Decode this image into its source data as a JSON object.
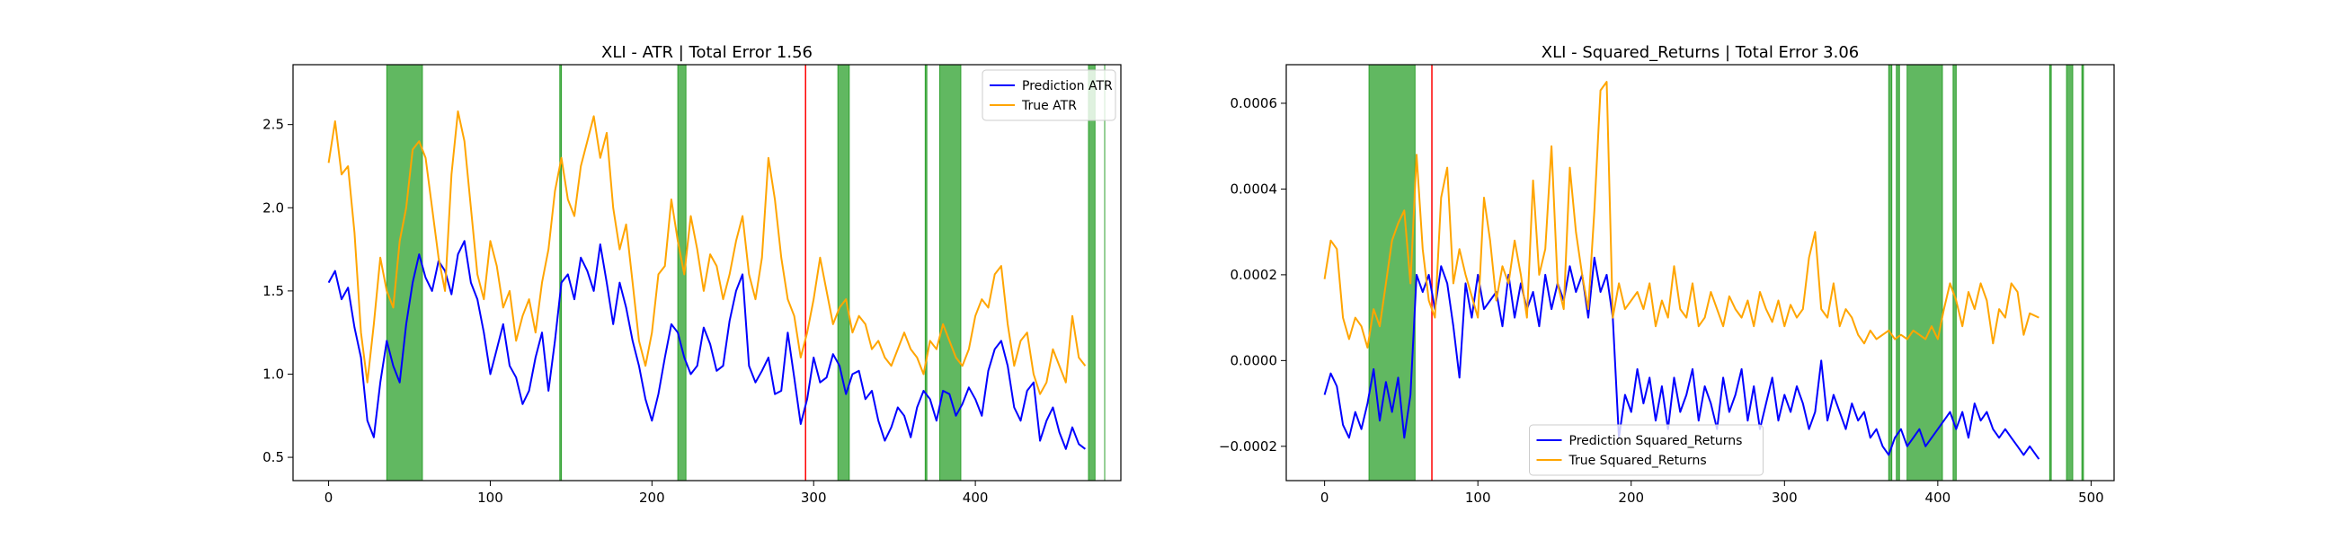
{
  "chart_data": [
    {
      "type": "line",
      "title": "XLI - ATR | Total Error 1.56",
      "xlabel": "",
      "ylabel": "",
      "xlim": [
        -22,
        490
      ],
      "ylim": [
        0.36,
        2.86
      ],
      "xticks": [
        0,
        100,
        200,
        300,
        400
      ],
      "yticks": [
        0.5,
        1.0,
        1.5,
        2.0,
        2.5
      ],
      "ytick_labels": [
        "0.5",
        "1.0",
        "1.5",
        "2.0",
        "2.5"
      ],
      "legend": "top-right",
      "colors": {
        "prediction": "#0000ff",
        "truth": "#ffa500",
        "green_band": "#2ca02c",
        "red_line": "#ff0000"
      },
      "series": [
        {
          "name": "Prediction ATR",
          "color": "#0000ff",
          "x": [
            0,
            4,
            8,
            12,
            16,
            20,
            24,
            28,
            32,
            36,
            40,
            44,
            48,
            52,
            56,
            60,
            64,
            68,
            72,
            76,
            80,
            84,
            88,
            92,
            96,
            100,
            104,
            108,
            112,
            116,
            120,
            124,
            128,
            132,
            136,
            140,
            144,
            148,
            152,
            156,
            160,
            164,
            168,
            172,
            176,
            180,
            184,
            188,
            192,
            196,
            200,
            204,
            208,
            212,
            216,
            220,
            224,
            228,
            232,
            236,
            240,
            244,
            248,
            252,
            256,
            260,
            264,
            268,
            272,
            276,
            280,
            284,
            288,
            292,
            296,
            300,
            304,
            308,
            312,
            316,
            320,
            324,
            328,
            332,
            336,
            340,
            344,
            348,
            352,
            356,
            360,
            364,
            368,
            372,
            376,
            380,
            384,
            388,
            392,
            396,
            400,
            404,
            408,
            412,
            416,
            420,
            424,
            428,
            432,
            436,
            440,
            444,
            448,
            452,
            456,
            460,
            464,
            468
          ],
          "y": [
            1.55,
            1.62,
            1.45,
            1.52,
            1.28,
            1.1,
            0.72,
            0.62,
            0.95,
            1.2,
            1.05,
            0.95,
            1.3,
            1.55,
            1.72,
            1.58,
            1.5,
            1.68,
            1.62,
            1.48,
            1.72,
            1.8,
            1.55,
            1.45,
            1.25,
            1.0,
            1.15,
            1.3,
            1.05,
            0.98,
            0.82,
            0.9,
            1.1,
            1.25,
            0.9,
            1.2,
            1.55,
            1.6,
            1.45,
            1.7,
            1.62,
            1.5,
            1.78,
            1.55,
            1.3,
            1.55,
            1.4,
            1.2,
            1.05,
            0.85,
            0.72,
            0.88,
            1.1,
            1.3,
            1.25,
            1.1,
            1.0,
            1.05,
            1.28,
            1.18,
            1.02,
            1.05,
            1.32,
            1.5,
            1.6,
            1.05,
            0.95,
            1.02,
            1.1,
            0.88,
            0.9,
            1.25,
            0.98,
            0.7,
            0.85,
            1.1,
            0.95,
            0.98,
            1.12,
            1.05,
            0.88,
            1.0,
            1.02,
            0.85,
            0.9,
            0.72,
            0.6,
            0.68,
            0.8,
            0.75,
            0.62,
            0.8,
            0.9,
            0.85,
            0.72,
            0.9,
            0.88,
            0.75,
            0.82,
            0.92,
            0.85,
            0.75,
            1.02,
            1.15,
            1.2,
            1.05,
            0.8,
            0.72,
            0.9,
            0.95,
            0.6,
            0.72,
            0.8,
            0.65,
            0.55,
            0.68,
            0.58,
            0.55
          ]
        },
        {
          "name": "True ATR",
          "color": "#ffa500",
          "x": [
            0,
            4,
            8,
            12,
            16,
            20,
            24,
            28,
            32,
            36,
            40,
            44,
            48,
            52,
            56,
            60,
            64,
            68,
            72,
            76,
            80,
            84,
            88,
            92,
            96,
            100,
            104,
            108,
            112,
            116,
            120,
            124,
            128,
            132,
            136,
            140,
            144,
            148,
            152,
            156,
            160,
            164,
            168,
            172,
            176,
            180,
            184,
            188,
            192,
            196,
            200,
            204,
            208,
            212,
            216,
            220,
            224,
            228,
            232,
            236,
            240,
            244,
            248,
            252,
            256,
            260,
            264,
            268,
            272,
            276,
            280,
            284,
            288,
            292,
            296,
            300,
            304,
            308,
            312,
            316,
            320,
            324,
            328,
            332,
            336,
            340,
            344,
            348,
            352,
            356,
            360,
            364,
            368,
            372,
            376,
            380,
            384,
            388,
            392,
            396,
            400,
            404,
            408,
            412,
            416,
            420,
            424,
            428,
            432,
            436,
            440,
            444,
            448,
            452,
            456,
            460,
            464,
            468
          ],
          "y": [
            2.27,
            2.52,
            2.2,
            2.25,
            1.85,
            1.25,
            0.95,
            1.3,
            1.7,
            1.5,
            1.4,
            1.8,
            2.0,
            2.35,
            2.4,
            2.3,
            2.0,
            1.7,
            1.5,
            2.2,
            2.58,
            2.4,
            2.0,
            1.6,
            1.45,
            1.8,
            1.65,
            1.4,
            1.5,
            1.2,
            1.35,
            1.45,
            1.25,
            1.55,
            1.75,
            2.1,
            2.3,
            2.05,
            1.95,
            2.25,
            2.4,
            2.55,
            2.3,
            2.45,
            2.0,
            1.75,
            1.9,
            1.55,
            1.2,
            1.05,
            1.25,
            1.6,
            1.65,
            2.05,
            1.8,
            1.6,
            1.95,
            1.75,
            1.5,
            1.72,
            1.65,
            1.45,
            1.6,
            1.8,
            1.95,
            1.6,
            1.45,
            1.7,
            2.3,
            2.05,
            1.7,
            1.45,
            1.35,
            1.1,
            1.25,
            1.45,
            1.7,
            1.5,
            1.3,
            1.4,
            1.45,
            1.25,
            1.35,
            1.3,
            1.15,
            1.2,
            1.1,
            1.05,
            1.15,
            1.25,
            1.15,
            1.1,
            1.0,
            1.2,
            1.15,
            1.3,
            1.2,
            1.1,
            1.05,
            1.15,
            1.35,
            1.45,
            1.4,
            1.6,
            1.65,
            1.3,
            1.05,
            1.2,
            1.25,
            1.0,
            0.88,
            0.95,
            1.15,
            1.05,
            0.95,
            1.35,
            1.1,
            1.05
          ]
        }
      ],
      "green_bands": [
        [
          36,
          58
        ],
        [
          143,
          144
        ],
        [
          216,
          221
        ],
        [
          315,
          322
        ],
        [
          369,
          370
        ],
        [
          378,
          391
        ],
        [
          470,
          474
        ]
      ],
      "red_lines": [
        295
      ],
      "extra_lines": [
        480
      ]
    },
    {
      "type": "line",
      "title": "XLI - Squared_Returns | Total Error 3.06",
      "xlabel": "",
      "ylabel": "",
      "xlim": [
        -25,
        515
      ],
      "ylim": [
        -0.00028,
        0.00069
      ],
      "xticks": [
        0,
        100,
        200,
        300,
        400,
        500
      ],
      "yticks": [
        -0.0002,
        0.0,
        0.0002,
        0.0004,
        0.0006
      ],
      "ytick_labels": [
        "−0.0002",
        "0.0000",
        "0.0002",
        "0.0004",
        "0.0006"
      ],
      "legend": "bottom-center",
      "colors": {
        "prediction": "#0000ff",
        "truth": "#ffa500",
        "green_band": "#2ca02c",
        "red_line": "#ff0000"
      },
      "series": [
        {
          "name": "Prediction Squared_Returns",
          "color": "#0000ff",
          "x": [
            0,
            4,
            8,
            12,
            16,
            20,
            24,
            28,
            32,
            36,
            40,
            44,
            48,
            52,
            56,
            60,
            64,
            68,
            72,
            76,
            80,
            84,
            88,
            92,
            96,
            100,
            104,
            108,
            112,
            116,
            120,
            124,
            128,
            132,
            136,
            140,
            144,
            148,
            152,
            156,
            160,
            164,
            168,
            172,
            176,
            180,
            184,
            188,
            192,
            196,
            200,
            204,
            208,
            212,
            216,
            220,
            224,
            228,
            232,
            236,
            240,
            244,
            248,
            252,
            256,
            260,
            264,
            268,
            272,
            276,
            280,
            284,
            288,
            292,
            296,
            300,
            304,
            308,
            312,
            316,
            320,
            324,
            328,
            332,
            336,
            340,
            344,
            348,
            352,
            356,
            360,
            364,
            368,
            372,
            376,
            380,
            384,
            388,
            392,
            396,
            400,
            404,
            408,
            412,
            416,
            420,
            424,
            428,
            432,
            436,
            440,
            444,
            448,
            452,
            456,
            460,
            466
          ],
          "y": [
            -8e-05,
            -3e-05,
            -6e-05,
            -0.00015,
            -0.00018,
            -0.00012,
            -0.00016,
            -0.0001,
            -2e-05,
            -0.00014,
            -5e-05,
            -0.00012,
            -4e-05,
            -0.00018,
            -8e-05,
            0.0002,
            0.00016,
            0.0002,
            0.00012,
            0.00022,
            0.00018,
            8e-05,
            -4e-05,
            0.00018,
            0.0001,
            0.0002,
            0.00012,
            0.00014,
            0.00016,
            8e-05,
            0.0002,
            0.0001,
            0.00018,
            0.00012,
            0.00016,
            8e-05,
            0.0002,
            0.00012,
            0.00018,
            0.00014,
            0.00022,
            0.00016,
            0.0002,
            0.0001,
            0.00024,
            0.00016,
            0.0002,
            0.0001,
            -0.00018,
            -8e-05,
            -0.00012,
            -2e-05,
            -0.0001,
            -4e-05,
            -0.00014,
            -6e-05,
            -0.00016,
            -4e-05,
            -0.00012,
            -8e-05,
            -2e-05,
            -0.00014,
            -6e-05,
            -0.0001,
            -0.00016,
            -4e-05,
            -0.00012,
            -8e-05,
            -2e-05,
            -0.00014,
            -6e-05,
            -0.00016,
            -0.0001,
            -4e-05,
            -0.00014,
            -8e-05,
            -0.00012,
            -6e-05,
            -0.0001,
            -0.00016,
            -0.00012,
            0.0,
            -0.00014,
            -8e-05,
            -0.00012,
            -0.00016,
            -0.0001,
            -0.00014,
            -0.00012,
            -0.00018,
            -0.00016,
            -0.0002,
            -0.00022,
            -0.00018,
            -0.00016,
            -0.0002,
            -0.00018,
            -0.00016,
            -0.0002,
            -0.00018,
            -0.00016,
            -0.00014,
            -0.00012,
            -0.00016,
            -0.00012,
            -0.00018,
            -0.0001,
            -0.00014,
            -0.00012,
            -0.00016,
            -0.00018,
            -0.00016,
            -0.00018,
            -0.0002,
            -0.00022,
            -0.0002,
            -0.00023
          ]
        },
        {
          "name": "True Squared_Returns",
          "color": "#ffa500",
          "x": [
            0,
            4,
            8,
            12,
            16,
            20,
            24,
            28,
            32,
            36,
            40,
            44,
            48,
            52,
            56,
            60,
            64,
            68,
            72,
            76,
            80,
            84,
            88,
            92,
            96,
            100,
            104,
            108,
            112,
            116,
            120,
            124,
            128,
            132,
            136,
            140,
            144,
            148,
            152,
            156,
            160,
            164,
            168,
            172,
            176,
            180,
            184,
            188,
            192,
            196,
            200,
            204,
            208,
            212,
            216,
            220,
            224,
            228,
            232,
            236,
            240,
            244,
            248,
            252,
            256,
            260,
            264,
            268,
            272,
            276,
            280,
            284,
            288,
            292,
            296,
            300,
            304,
            308,
            312,
            316,
            320,
            324,
            328,
            332,
            336,
            340,
            344,
            348,
            352,
            356,
            360,
            364,
            368,
            372,
            376,
            380,
            384,
            388,
            392,
            396,
            400,
            404,
            408,
            412,
            416,
            420,
            424,
            428,
            432,
            436,
            440,
            444,
            448,
            452,
            456,
            460,
            466
          ],
          "y": [
            0.00019,
            0.00028,
            0.00026,
            0.0001,
            5e-05,
            0.0001,
            8e-05,
            3e-05,
            0.00012,
            8e-05,
            0.00018,
            0.00028,
            0.00032,
            0.00035,
            0.00018,
            0.00048,
            0.00026,
            0.00014,
            0.0001,
            0.00038,
            0.00045,
            0.00018,
            0.00026,
            0.0002,
            0.00015,
            0.0001,
            0.00038,
            0.00028,
            0.00014,
            0.00022,
            0.00018,
            0.00028,
            0.0002,
            0.0001,
            0.00042,
            0.0002,
            0.00026,
            0.0005,
            0.00018,
            0.00012,
            0.00045,
            0.0003,
            0.0002,
            0.00012,
            0.00035,
            0.00063,
            0.00065,
            0.0001,
            0.00018,
            0.00012,
            0.00014,
            0.00016,
            0.00012,
            0.00018,
            8e-05,
            0.00014,
            0.0001,
            0.00022,
            0.00012,
            0.0001,
            0.00018,
            8e-05,
            0.0001,
            0.00016,
            0.00012,
            8e-05,
            0.00015,
            0.00012,
            0.0001,
            0.00014,
            8e-05,
            0.00016,
            0.00012,
            9e-05,
            0.00014,
            8e-05,
            0.00013,
            0.0001,
            0.00012,
            0.00024,
            0.0003,
            0.00012,
            0.0001,
            0.00018,
            8e-05,
            0.00012,
            0.0001,
            6e-05,
            4e-05,
            7e-05,
            5e-05,
            6e-05,
            7e-05,
            5e-05,
            6e-05,
            5e-05,
            7e-05,
            6e-05,
            5e-05,
            8e-05,
            5e-05,
            0.00012,
            0.00018,
            0.00014,
            8e-05,
            0.00016,
            0.00012,
            0.00018,
            0.00014,
            4e-05,
            0.00012,
            0.0001,
            0.00018,
            0.00016,
            6e-05,
            0.00011,
            0.0001
          ]
        }
      ],
      "green_bands": [
        [
          29,
          59
        ],
        [
          368,
          370
        ],
        [
          373,
          375
        ],
        [
          380,
          403
        ],
        [
          410,
          412
        ],
        [
          473,
          474
        ],
        [
          484,
          488
        ],
        [
          494,
          495
        ]
      ],
      "red_lines": [
        70
      ],
      "extra_lines": []
    }
  ]
}
